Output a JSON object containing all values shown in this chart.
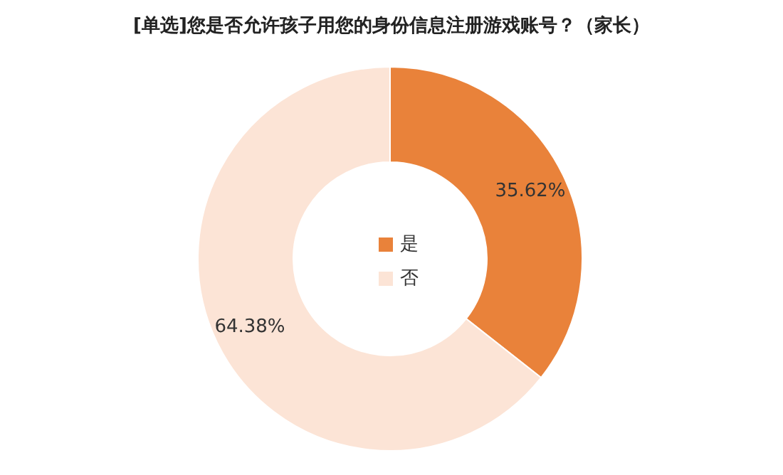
{
  "chart_data": {
    "type": "donut",
    "title": "[单选]您是否允许孩子用您的身份信息注册游戏账号？（家长）",
    "categories": [
      "是",
      "否"
    ],
    "values": [
      35.62,
      64.38
    ],
    "colors": [
      "#e9823a",
      "#fce4d6"
    ],
    "value_labels": [
      "35.62%",
      "64.38%"
    ],
    "legend": "center"
  }
}
